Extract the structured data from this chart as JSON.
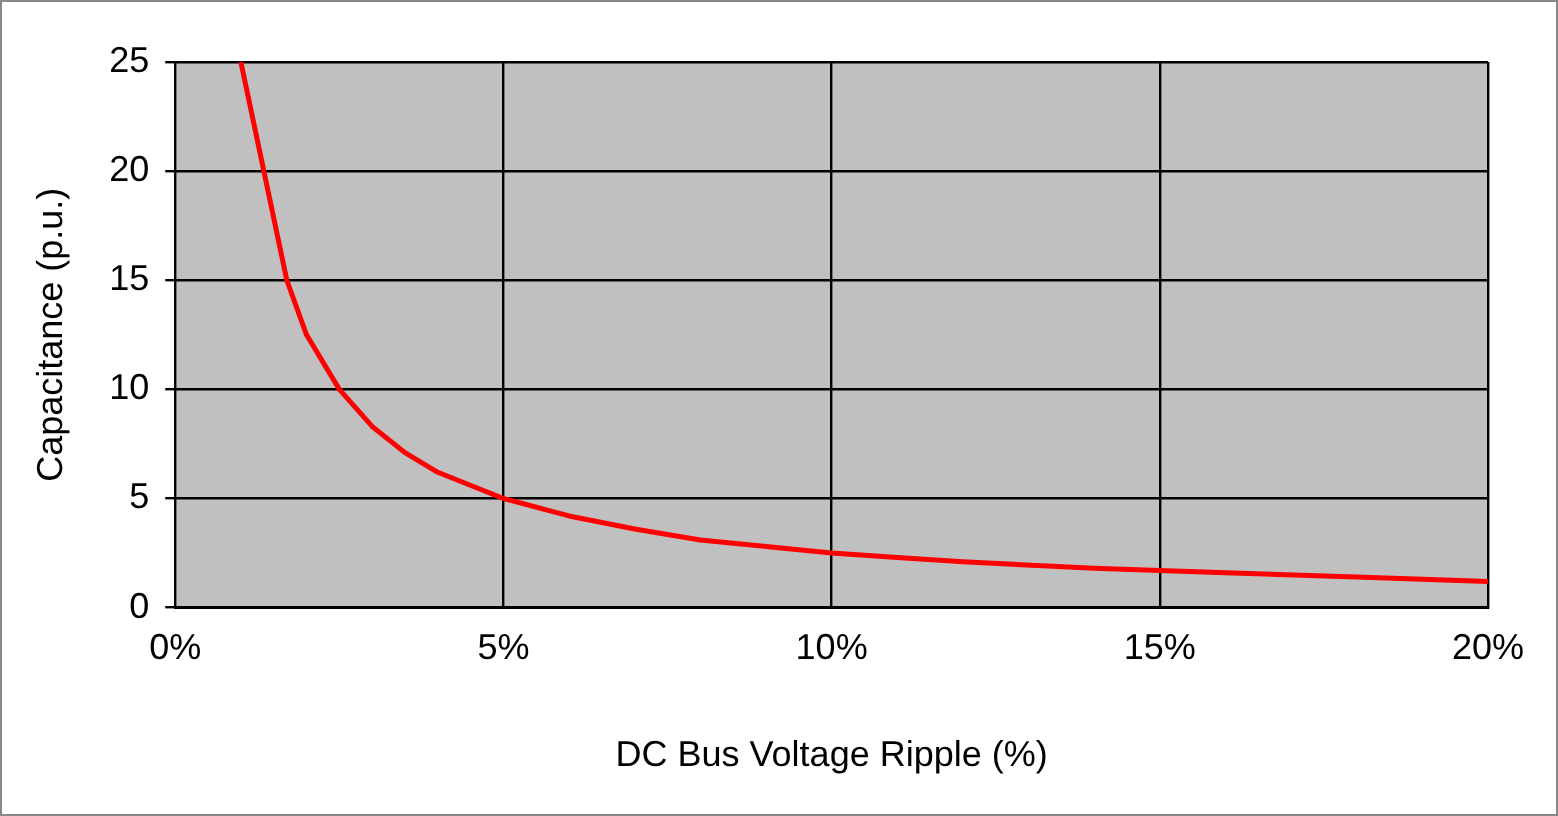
{
  "chart_data": {
    "type": "line",
    "xlabel": "DC Bus Voltage Ripple (%)",
    "ylabel": "Capacitance (p.u.)",
    "x": [
      1,
      1.35,
      1.7,
      2,
      2.5,
      3,
      3.5,
      4,
      5,
      6,
      7,
      8,
      9,
      10,
      11,
      12,
      14,
      15,
      16,
      18,
      19,
      20
    ],
    "series": [
      {
        "color": "#ff0000",
        "values": [
          25,
          20,
          15,
          12.5,
          10,
          8.3,
          7.1,
          6.2,
          5,
          4.2,
          3.6,
          3.1,
          2.8,
          2.5,
          2.3,
          2.1,
          1.8,
          1.7,
          1.6,
          1.4,
          1.3,
          1.2
        ]
      }
    ],
    "xlim": [
      0,
      20
    ],
    "xticks": [
      {
        "value": 0,
        "label": "0%"
      },
      {
        "value": 5,
        "label": "5%"
      },
      {
        "value": 10,
        "label": "10%"
      },
      {
        "value": 15,
        "label": "15%"
      },
      {
        "value": 20,
        "label": "20%"
      }
    ],
    "ylim": [
      0,
      25
    ],
    "yticks": [
      0,
      5,
      10,
      15,
      20,
      25
    ],
    "grid": true,
    "legend": false,
    "marker": "none",
    "line_style": "solid"
  }
}
